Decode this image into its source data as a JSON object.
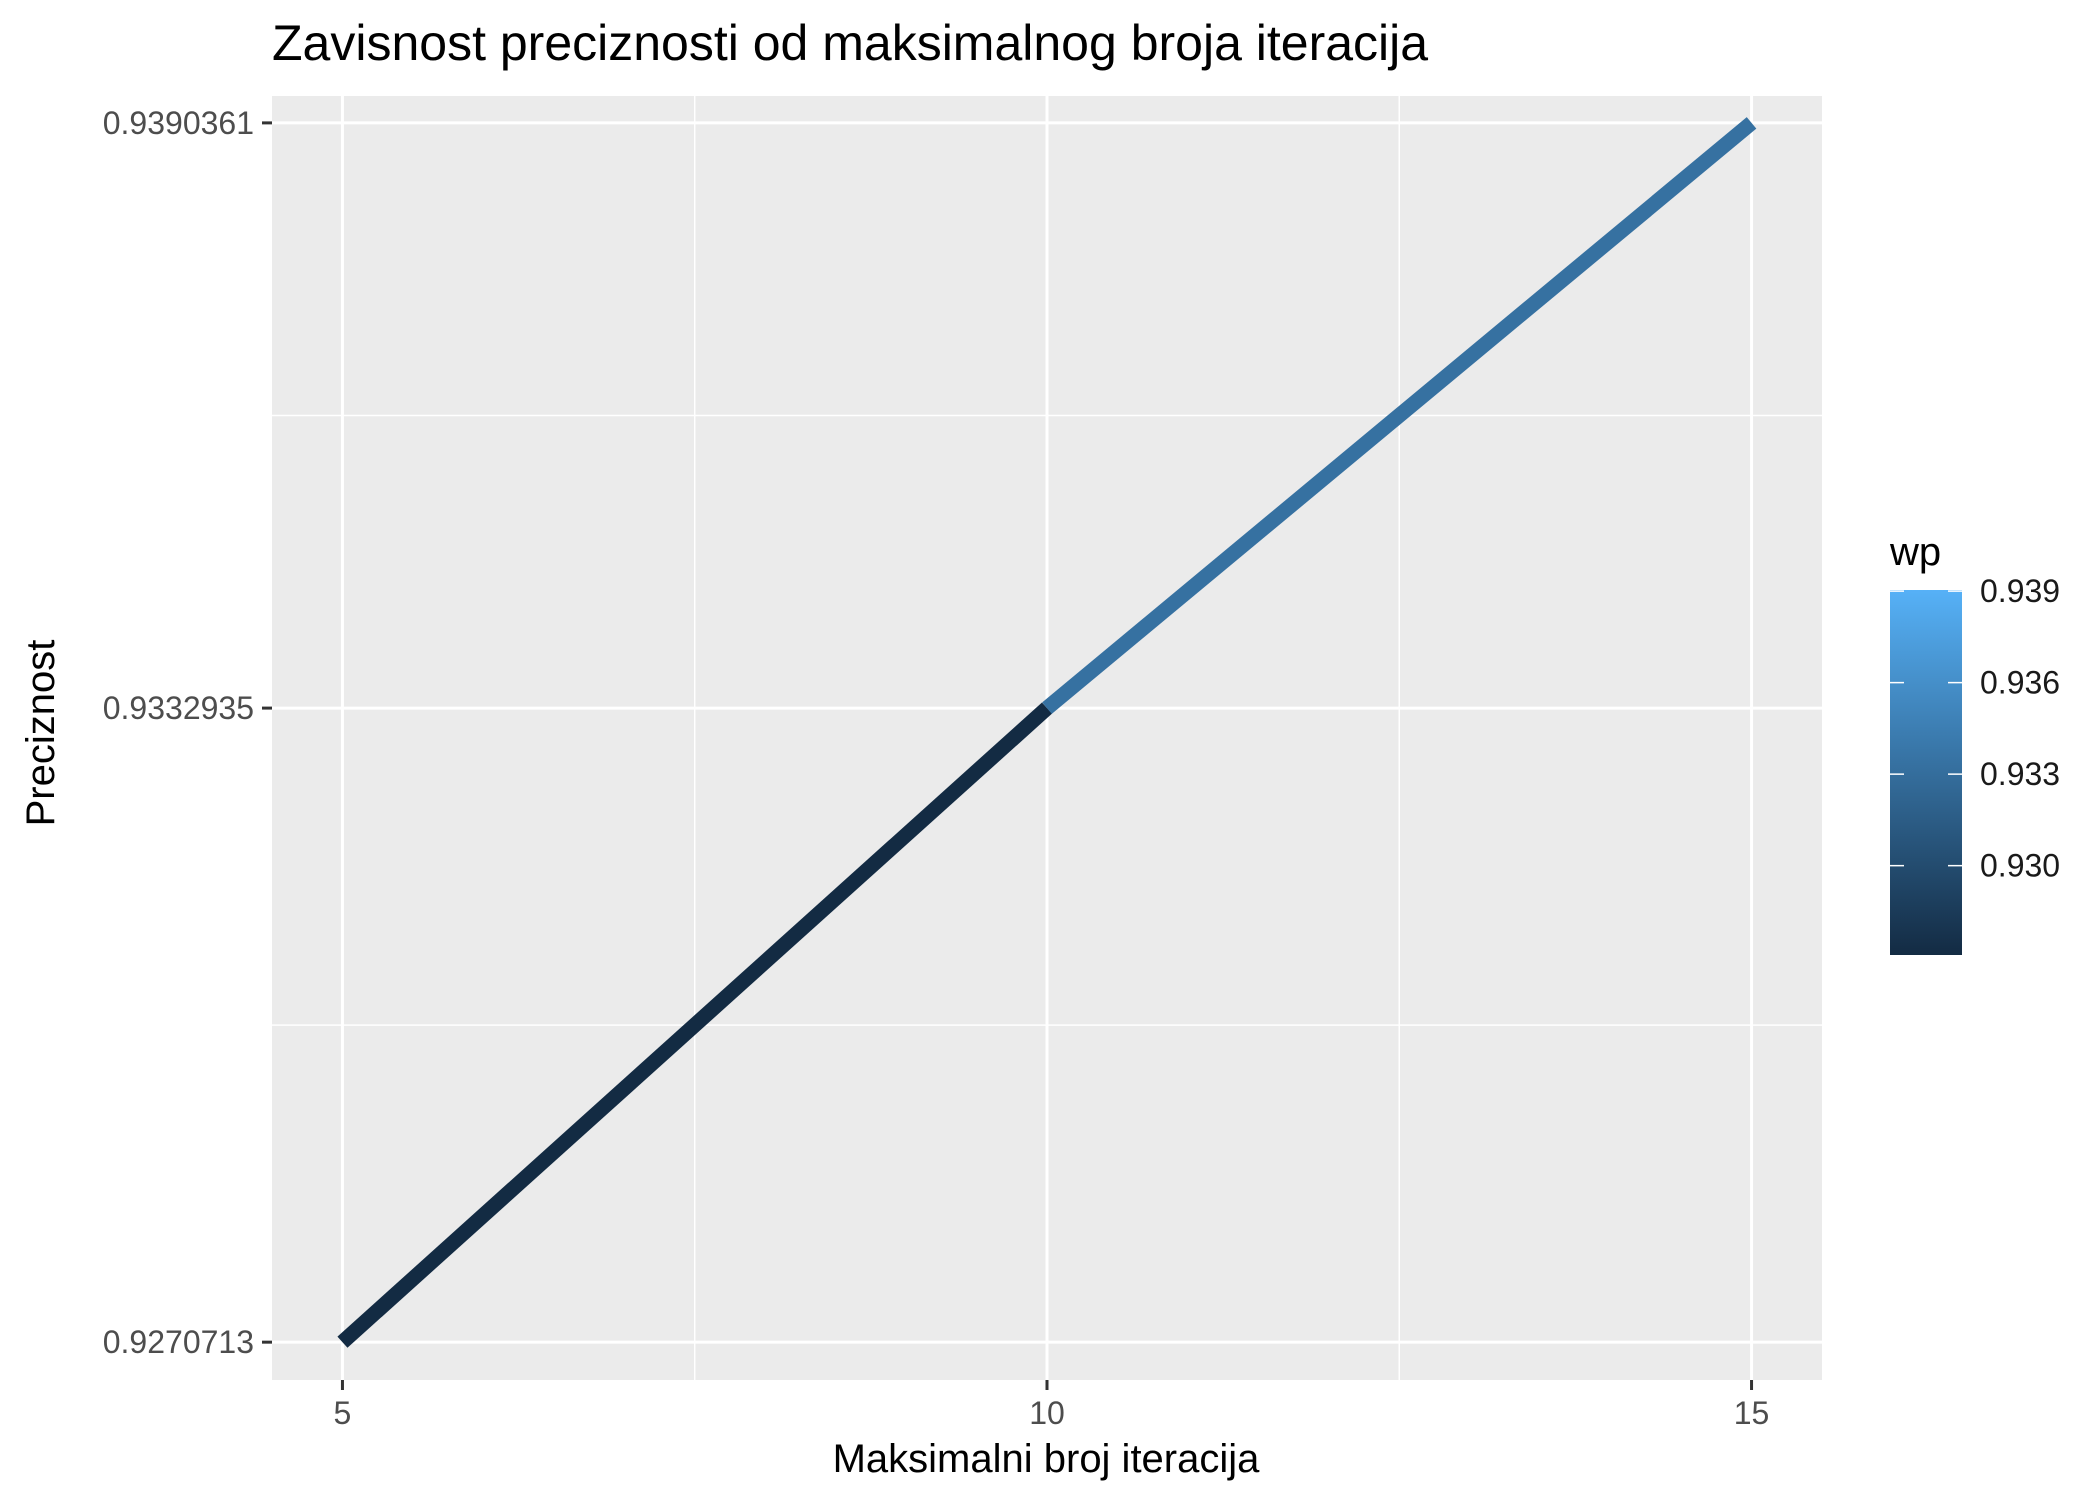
{
  "chart_data": {
    "type": "line",
    "title": "Zavisnost preciznosti od maksimalnog broja iteracija",
    "xlabel": "Maksimalni broj iteracija",
    "ylabel": "Preciznost",
    "x": [
      5,
      10,
      15
    ],
    "y": [
      0.9270713,
      0.9332935,
      0.9390361
    ],
    "xlim": [
      4.5,
      15.5
    ],
    "ylim": [
      0.9267,
      0.9393
    ],
    "x_ticks": [
      5,
      10,
      15
    ],
    "x_tick_labels": [
      "5",
      "10",
      "15"
    ],
    "y_ticks": [
      0.9270713,
      0.9332935,
      0.9390361
    ],
    "y_tick_labels": [
      "0.9270713",
      "0.9332935",
      "0.9390361"
    ],
    "grid": true,
    "panel_background": "#EBEBEB",
    "grid_color": "#FFFFFF",
    "color_mapping": {
      "variable": "wp",
      "low_color": "#132B43",
      "high_color": "#56B1F7",
      "range": [
        0.9270713,
        0.9390361
      ]
    },
    "legend": {
      "title": "wp",
      "type": "colorbar",
      "position": "right",
      "breaks": [
        0.93,
        0.933,
        0.936,
        0.939
      ],
      "labels": [
        "0.930",
        "0.933",
        "0.936",
        "0.939"
      ]
    }
  }
}
